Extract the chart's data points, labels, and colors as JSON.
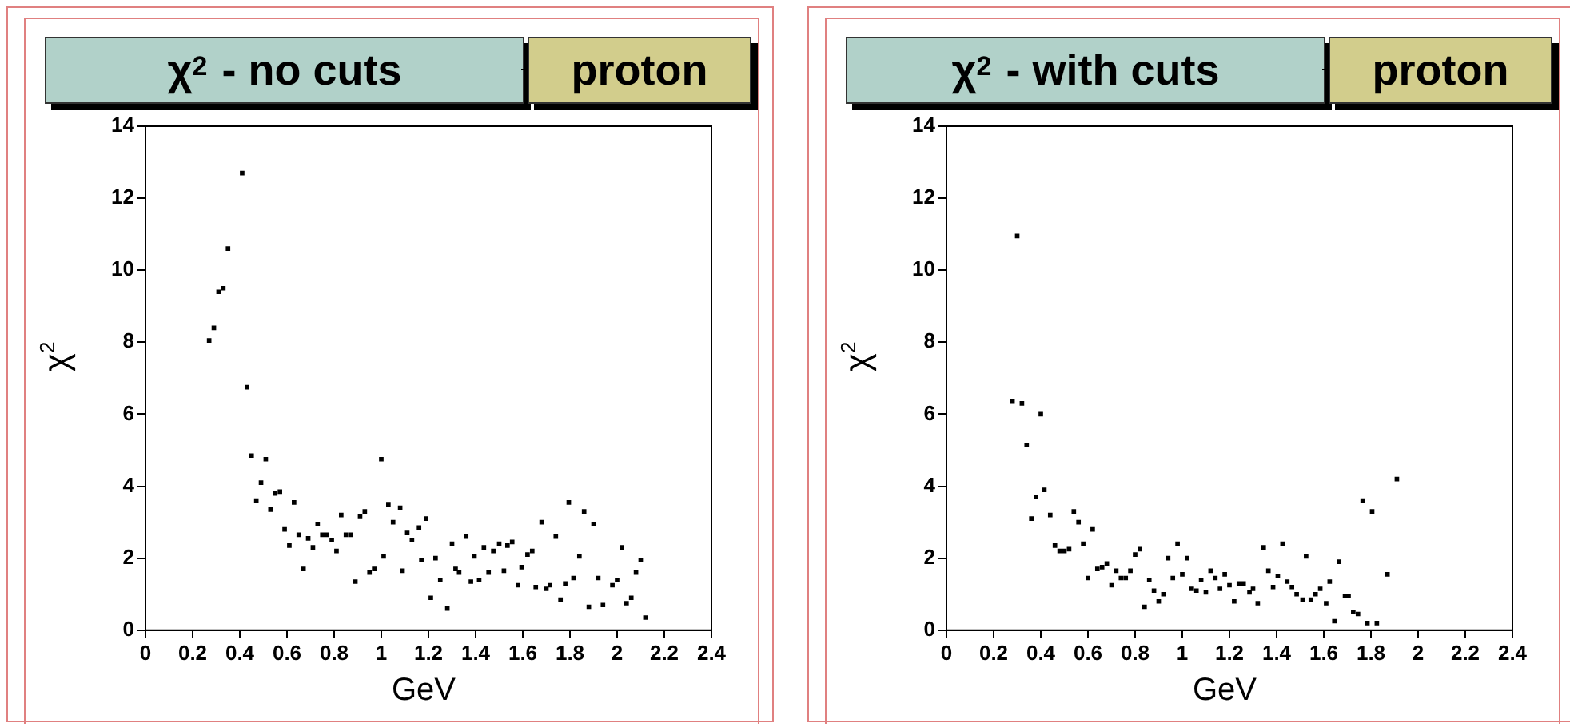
{
  "chart_data": [
    {
      "type": "scatter",
      "title": "χ$^{2}$ - no cuts",
      "subtitle": "proton",
      "xlabel": "GeV",
      "ylabel": "χ$^{2}$",
      "xlim": [
        0,
        2.4
      ],
      "xticks": [
        0,
        0.2,
        0.4,
        0.6,
        0.8,
        1,
        1.2,
        1.4,
        1.6,
        1.8,
        2,
        2.2,
        2.4
      ],
      "ylim": [
        0,
        14
      ],
      "yticks": [
        0,
        2,
        4,
        6,
        8,
        10,
        12,
        14
      ],
      "grid": false,
      "legend": false,
      "marker": "square",
      "series": [
        {
          "color": "#000000",
          "x": [
            0.27,
            0.29,
            0.31,
            0.33,
            0.35,
            0.41,
            0.43,
            0.45,
            0.47,
            0.49,
            0.51,
            0.53,
            0.55,
            0.57,
            0.59,
            0.61,
            0.63,
            0.65,
            0.67,
            0.69,
            0.71,
            0.73,
            0.75,
            0.77,
            0.79,
            0.81,
            0.83,
            0.85,
            0.87,
            0.89,
            0.91,
            0.93,
            0.95,
            0.97,
            1.0,
            1.01,
            1.03,
            1.05,
            1.08,
            1.09,
            1.11,
            1.13,
            1.16,
            1.17,
            1.19,
            1.21,
            1.23,
            1.25,
            1.28,
            1.3,
            1.315,
            1.33,
            1.36,
            1.38,
            1.395,
            1.415,
            1.435,
            1.455,
            1.475,
            1.5,
            1.52,
            1.535,
            1.555,
            1.58,
            1.595,
            1.62,
            1.64,
            1.655,
            1.68,
            1.7,
            1.715,
            1.74,
            1.76,
            1.78,
            1.795,
            1.815,
            1.84,
            1.86,
            1.88,
            1.9,
            1.92,
            1.94,
            1.98,
            2.0,
            2.02,
            2.04,
            2.06,
            2.08,
            2.1,
            2.12
          ],
          "values": [
            8.05,
            8.4,
            9.4,
            9.5,
            10.6,
            12.7,
            6.75,
            4.85,
            3.6,
            4.1,
            4.75,
            3.35,
            3.8,
            3.85,
            2.8,
            2.35,
            3.55,
            2.65,
            1.7,
            2.55,
            2.3,
            2.95,
            2.65,
            2.65,
            2.5,
            2.2,
            3.2,
            2.65,
            2.65,
            1.35,
            3.15,
            3.3,
            1.6,
            1.7,
            4.75,
            2.05,
            3.5,
            3.0,
            3.4,
            1.65,
            2.7,
            2.5,
            2.85,
            1.95,
            3.1,
            0.9,
            2.0,
            1.4,
            0.6,
            2.4,
            1.7,
            1.6,
            2.6,
            1.35,
            2.05,
            1.4,
            2.3,
            1.6,
            2.2,
            2.4,
            1.65,
            2.35,
            2.45,
            1.25,
            1.75,
            2.1,
            2.2,
            1.2,
            3.0,
            1.15,
            1.25,
            2.6,
            0.85,
            1.3,
            3.55,
            1.45,
            2.05,
            3.3,
            0.65,
            2.95,
            1.45,
            0.7,
            1.25,
            1.4,
            2.3,
            0.75,
            0.9,
            1.6,
            1.95,
            0.35
          ]
        }
      ]
    },
    {
      "type": "scatter",
      "title": "χ$^{2}$ - with cuts",
      "subtitle": "proton",
      "xlabel": "GeV",
      "ylabel": "χ$^{2}$",
      "xlim": [
        0,
        2.4
      ],
      "xticks": [
        0,
        0.2,
        0.4,
        0.6,
        0.8,
        1,
        1.2,
        1.4,
        1.6,
        1.8,
        2,
        2.2,
        2.4
      ],
      "ylim": [
        0,
        14
      ],
      "yticks": [
        0,
        2,
        4,
        6,
        8,
        10,
        12,
        14
      ],
      "grid": false,
      "legend": false,
      "marker": "square",
      "series": [
        {
          "color": "#000000",
          "x": [
            0.28,
            0.3,
            0.32,
            0.34,
            0.36,
            0.38,
            0.4,
            0.415,
            0.44,
            0.46,
            0.48,
            0.5,
            0.52,
            0.54,
            0.56,
            0.58,
            0.6,
            0.62,
            0.64,
            0.66,
            0.68,
            0.7,
            0.72,
            0.74,
            0.76,
            0.78,
            0.8,
            0.82,
            0.84,
            0.86,
            0.88,
            0.9,
            0.92,
            0.94,
            0.96,
            0.98,
            1.0,
            1.02,
            1.04,
            1.06,
            1.08,
            1.1,
            1.12,
            1.14,
            1.16,
            1.18,
            1.2,
            1.22,
            1.24,
            1.26,
            1.285,
            1.3,
            1.32,
            1.345,
            1.365,
            1.385,
            1.405,
            1.425,
            1.445,
            1.465,
            1.485,
            1.51,
            1.525,
            1.545,
            1.565,
            1.585,
            1.61,
            1.625,
            1.645,
            1.665,
            1.69,
            1.705,
            1.725,
            1.745,
            1.765,
            1.785,
            1.805,
            1.825,
            1.87,
            1.91
          ],
          "values": [
            6.35,
            10.95,
            6.3,
            5.15,
            3.1,
            3.7,
            6.0,
            3.9,
            3.2,
            2.35,
            2.2,
            2.2,
            2.25,
            3.3,
            3.0,
            2.4,
            1.45,
            2.8,
            1.7,
            1.75,
            1.85,
            1.25,
            1.65,
            1.45,
            1.45,
            1.65,
            2.1,
            2.25,
            0.65,
            1.4,
            1.1,
            0.8,
            1.0,
            2.0,
            1.45,
            2.4,
            1.55,
            2.0,
            1.15,
            1.1,
            1.4,
            1.05,
            1.65,
            1.45,
            1.15,
            1.55,
            1.25,
            0.8,
            1.3,
            1.3,
            1.05,
            1.15,
            0.75,
            2.3,
            1.65,
            1.2,
            1.5,
            2.4,
            1.35,
            1.2,
            1.0,
            0.85,
            2.05,
            0.85,
            1.0,
            1.15,
            0.75,
            1.35,
            0.25,
            1.9,
            0.95,
            0.95,
            0.5,
            0.45,
            3.6,
            0.2,
            3.3,
            0.2,
            1.55,
            4.2
          ]
        }
      ]
    }
  ]
}
